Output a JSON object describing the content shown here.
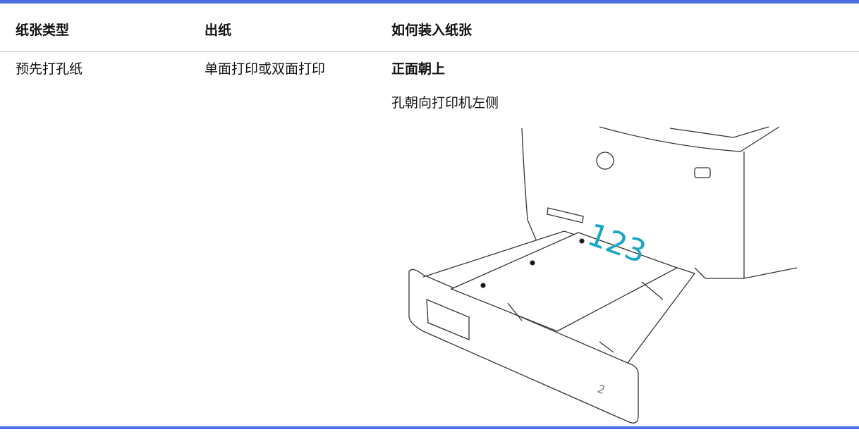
{
  "table": {
    "headers": [
      "纸张类型",
      "出纸",
      "如何装入纸张"
    ],
    "rows": [
      [
        "预先打孔纸",
        "单面打印或双面打印",
        {
          "emphasis": "正面朝上",
          "note": "孔朝向打印机左侧"
        }
      ]
    ]
  },
  "illustration": {
    "paper_text": "123",
    "tray_number": "2"
  }
}
